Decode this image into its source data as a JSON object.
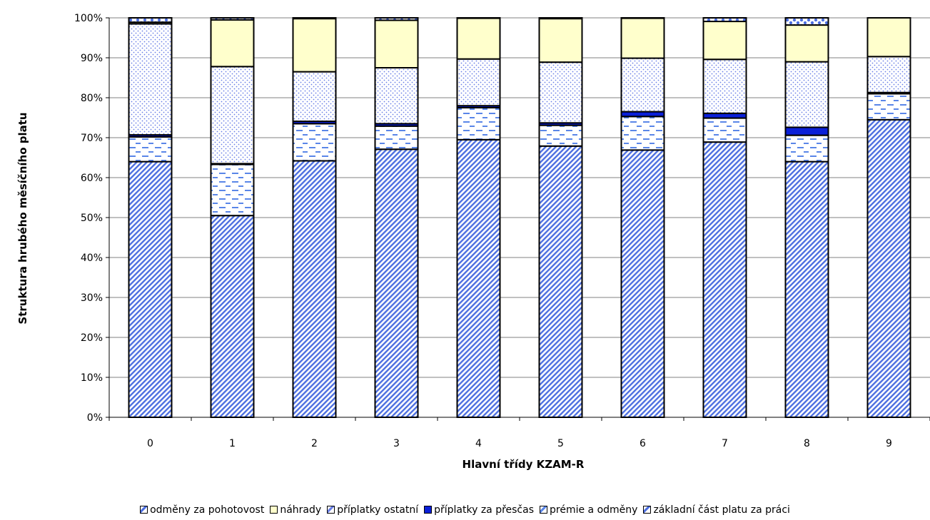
{
  "chart_data": {
    "type": "bar",
    "stacked": true,
    "percent_stacked": true,
    "title": "",
    "xlabel": "Hlavní třídy KZAM-R",
    "ylabel": "Struktura hrubého měsíčního platu",
    "categories": [
      "0",
      "1",
      "2",
      "3",
      "4",
      "5",
      "6",
      "7",
      "8",
      "9"
    ],
    "ylim": [
      0,
      100
    ],
    "yticks": [
      "0%",
      "10%",
      "20%",
      "30%",
      "40%",
      "50%",
      "60%",
      "70%",
      "80%",
      "90%",
      "100%"
    ],
    "grid": "horizontal",
    "legend_position": "bottom",
    "series": [
      {
        "name": "základní část platu za práci",
        "pattern": "diagonal",
        "color": "#4d6fe0",
        "values": [
          64.0,
          50.5,
          64.2,
          67.1,
          69.5,
          67.9,
          66.9,
          68.9,
          64.0,
          74.5
        ]
      },
      {
        "name": "prémie a odměny",
        "pattern": "dashes",
        "color": "#5a86e8",
        "values": [
          6.2,
          12.8,
          9.3,
          5.8,
          8.0,
          5.2,
          8.4,
          6.0,
          6.6,
          6.5
        ]
      },
      {
        "name": "příplatky  za přesčas",
        "pattern": "solid",
        "color": "#0a1fd8",
        "values": [
          0.5,
          0.2,
          0.6,
          0.6,
          0.5,
          0.6,
          1.2,
          1.2,
          2.0,
          0.3
        ]
      },
      {
        "name": "příplatky ostatní",
        "pattern": "dots",
        "color": "#6a7fe6",
        "values": [
          27.8,
          24.3,
          12.4,
          14.0,
          11.7,
          15.2,
          13.4,
          13.5,
          16.4,
          9.0
        ]
      },
      {
        "name": "náhrady",
        "pattern": "solid",
        "color": "#ffffcc",
        "values": [
          0.4,
          11.7,
          13.3,
          11.9,
          10.2,
          10.9,
          10.0,
          9.5,
          9.2,
          9.7
        ]
      },
      {
        "name": "odměny za pohotovost",
        "pattern": "bubbles",
        "color": "#4d6fe0",
        "values": [
          1.1,
          0.5,
          0.2,
          0.6,
          0.1,
          0.2,
          0.1,
          0.9,
          1.8,
          0.0
        ]
      }
    ]
  },
  "legend_order": [
    "odměny za pohotovost",
    "náhrady",
    "příplatky ostatní",
    "příplatky  za přesčas",
    "prémie a odměny",
    "základní část platu za práci"
  ]
}
